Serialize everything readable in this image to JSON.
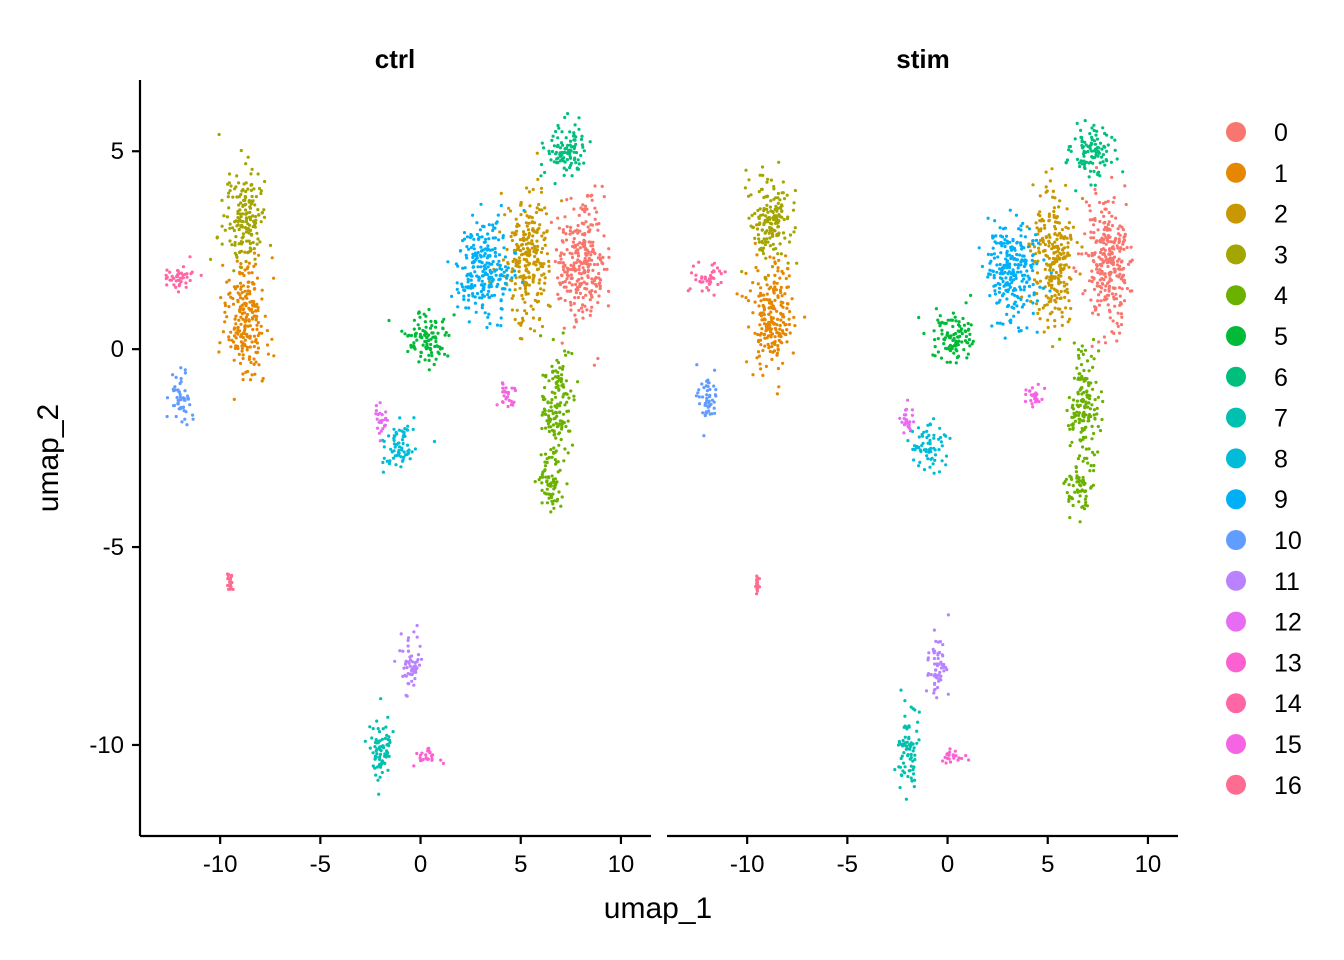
{
  "chart_data": {
    "type": "scatter",
    "panels": [
      "ctrl",
      "stim"
    ],
    "xlabel": "umap_1",
    "ylabel": "umap_2",
    "xlim": [
      -14,
      11.5
    ],
    "ylim": [
      -12.3,
      6.8
    ],
    "xticks": [
      -10,
      -5,
      0,
      5,
      10
    ],
    "yticks": [
      -10,
      -5,
      0,
      5
    ],
    "xtick_labels": [
      "-10",
      "-5",
      "0",
      "5",
      "10"
    ],
    "ytick_labels": [
      "-10",
      "-5",
      "0",
      "5"
    ],
    "legend": {
      "position": "right",
      "entries": [
        "0",
        "1",
        "2",
        "3",
        "4",
        "5",
        "6",
        "7",
        "8",
        "9",
        "10",
        "11",
        "12",
        "13",
        "14",
        "15",
        "16"
      ]
    },
    "colors": [
      "#F8766D",
      "#E58700",
      "#C99800",
      "#A3A500",
      "#6BB100",
      "#00BA38",
      "#00BF7D",
      "#00C0AF",
      "#00BCD8",
      "#00B0F6",
      "#619CFF",
      "#B983FF",
      "#E76BF3",
      "#FD61D1",
      "#FF67A4",
      "#F564E3",
      "#FF6C91"
    ],
    "clusters": [
      {
        "cluster": "0",
        "blobs": [
          {
            "x": 8,
            "y": 2.2,
            "sx": 1.1,
            "sy": 1.5
          }
        ]
      },
      {
        "cluster": "1",
        "blobs": [
          {
            "x": -8.8,
            "y": 0.8,
            "sx": 1.0,
            "sy": 1.3
          }
        ]
      },
      {
        "cluster": "2",
        "blobs": [
          {
            "x": 5.3,
            "y": 2.3,
            "sx": 1.0,
            "sy": 1.5
          }
        ]
      },
      {
        "cluster": "3",
        "blobs": [
          {
            "x": -8.8,
            "y": 3.3,
            "sx": 1.0,
            "sy": 1.0
          }
        ]
      },
      {
        "cluster": "4",
        "blobs": [
          {
            "x": 6.8,
            "y": -1.5,
            "sx": 0.7,
            "sy": 1.3
          },
          {
            "x": 6.5,
            "y": -3.5,
            "sx": 0.6,
            "sy": 0.6
          }
        ]
      },
      {
        "cluster": "5",
        "blobs": [
          {
            "x": 0.3,
            "y": 0.3,
            "sx": 1.0,
            "sy": 0.6
          }
        ]
      },
      {
        "cluster": "6",
        "blobs": [
          {
            "x": 7.2,
            "y": 5.0,
            "sx": 1.0,
            "sy": 0.6
          }
        ]
      },
      {
        "cluster": "7",
        "blobs": [
          {
            "x": -2.0,
            "y": -10.2,
            "sx": 0.5,
            "sy": 0.9
          }
        ]
      },
      {
        "cluster": "8",
        "blobs": [
          {
            "x": -1.0,
            "y": -2.5,
            "sx": 0.8,
            "sy": 0.5
          }
        ]
      },
      {
        "cluster": "9",
        "blobs": [
          {
            "x": 3.2,
            "y": 2.0,
            "sx": 1.2,
            "sy": 1.2
          }
        ]
      },
      {
        "cluster": "10",
        "blobs": [
          {
            "x": -12.0,
            "y": -1.3,
            "sx": 0.5,
            "sy": 0.6
          }
        ]
      },
      {
        "cluster": "11",
        "blobs": [
          {
            "x": -0.5,
            "y": -8.0,
            "sx": 0.5,
            "sy": 0.7
          }
        ]
      },
      {
        "cluster": "12",
        "blobs": [
          {
            "x": -2.0,
            "y": -1.8,
            "sx": 0.3,
            "sy": 0.4
          }
        ]
      },
      {
        "cluster": "13",
        "blobs": [
          {
            "x": 0.3,
            "y": -10.3,
            "sx": 0.5,
            "sy": 0.2
          }
        ]
      },
      {
        "cluster": "14",
        "blobs": [
          {
            "x": -12.0,
            "y": 1.8,
            "sx": 0.8,
            "sy": 0.3
          }
        ]
      },
      {
        "cluster": "15",
        "blobs": [
          {
            "x": 4.3,
            "y": -1.2,
            "sx": 0.5,
            "sy": 0.3
          }
        ]
      },
      {
        "cluster": "16",
        "blobs": [
          {
            "x": -9.5,
            "y": -5.9,
            "sx": 0.1,
            "sy": 0.2
          }
        ]
      }
    ]
  }
}
